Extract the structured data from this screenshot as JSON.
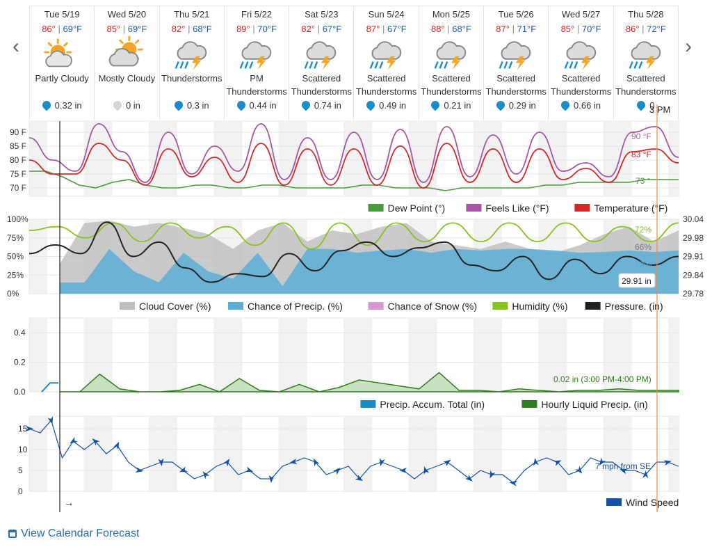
{
  "nav": {
    "prev_icon": "‹",
    "next_icon": "›"
  },
  "days": [
    {
      "name": "Tue 5/19",
      "hi": "86°",
      "lo": "69°F",
      "icon": "partly-cloudy",
      "cond": "Partly Cloudy",
      "precip": "0.32 in",
      "wet": true
    },
    {
      "name": "Wed 5/20",
      "hi": "85°",
      "lo": "69°F",
      "icon": "mostly-cloudy",
      "cond": "Mostly Cloudy",
      "precip": "0 in",
      "wet": false
    },
    {
      "name": "Thu 5/21",
      "hi": "82°",
      "lo": "68°F",
      "icon": "thunderstorm",
      "cond": "Thunderstorms",
      "precip": "0.3 in",
      "wet": true
    },
    {
      "name": "Fri 5/22",
      "hi": "89°",
      "lo": "70°F",
      "icon": "thunderstorm",
      "cond": "PM Thunderstorms",
      "precip": "0.44 in",
      "wet": true
    },
    {
      "name": "Sat 5/23",
      "hi": "82°",
      "lo": "67°F",
      "icon": "thunderstorm",
      "cond": "Scattered Thunderstorms",
      "precip": "0.74 in",
      "wet": true
    },
    {
      "name": "Sun 5/24",
      "hi": "87°",
      "lo": "67°F",
      "icon": "thunderstorm",
      "cond": "Scattered Thunderstorms",
      "precip": "0.49 in",
      "wet": true
    },
    {
      "name": "Mon 5/25",
      "hi": "88°",
      "lo": "68°F",
      "icon": "thunderstorm",
      "cond": "Scattered Thunderstorms",
      "precip": "0.21 in",
      "wet": true
    },
    {
      "name": "Tue 5/26",
      "hi": "87°",
      "lo": "71°F",
      "icon": "thunderstorm",
      "cond": "Scattered Thunderstorms",
      "precip": "0.29 in",
      "wet": true
    },
    {
      "name": "Wed 5/27",
      "hi": "85°",
      "lo": "70°F",
      "icon": "thunderstorm",
      "cond": "Scattered Thunderstorms",
      "precip": "0.66 in",
      "wet": true
    },
    {
      "name": "Thu 5/28",
      "hi": "86°",
      "lo": "72°F",
      "icon": "thunderstorm",
      "cond": "Scattered Thunderstorms",
      "precip": "0",
      "wet": true
    }
  ],
  "colors": {
    "temp": "#d62728",
    "feels": "#a855a8",
    "dew": "#4a9a3a",
    "cloud": "#bdbdbd",
    "precip_chance": "#5aaed6",
    "snow": "#d59ad0",
    "humidity": "#88c21e",
    "pressure": "#222222",
    "accum": "#1a8cc8",
    "liquid": "#2e7d1e",
    "wind": "#1052a8",
    "cursor": "#f08a3c"
  },
  "cursor_label": "3 PM",
  "chart_data": [
    {
      "type": "line",
      "yticks": [
        "90 F",
        "85 F",
        "80 F",
        "75 F",
        "70 F"
      ],
      "ylim": [
        67,
        94
      ],
      "series": [
        {
          "name": "Dew Point (°)",
          "key": "dew",
          "values": [
            76,
            76,
            74,
            71,
            70,
            72,
            73,
            71,
            70,
            70,
            71,
            71,
            70,
            70,
            71,
            71,
            70,
            70,
            70,
            70,
            71,
            71,
            70,
            70,
            70,
            69,
            70,
            70,
            70,
            70,
            70,
            71,
            71,
            72,
            72,
            72,
            72,
            73,
            73,
            73
          ]
        },
        {
          "name": "Feels Like (°F)",
          "key": "feels",
          "values": [
            88,
            80,
            76,
            93,
            83,
            72,
            90,
            75,
            85,
            76,
            93,
            73,
            88,
            73,
            90,
            73,
            91,
            72,
            92,
            74,
            89,
            75,
            90,
            76,
            79,
            74,
            90,
            92,
            81
          ]
        },
        {
          "name": "Temperature (°F)",
          "key": "temp",
          "values": [
            80,
            75,
            75,
            86,
            80,
            71,
            84,
            74,
            81,
            72,
            86,
            71,
            84,
            71,
            84,
            71,
            85,
            70,
            86,
            72,
            84,
            72,
            84,
            73,
            77,
            72,
            83,
            84,
            79
          ]
        }
      ],
      "callouts": [
        "90 °F",
        "83 °F",
        "73 °"
      ]
    },
    {
      "type": "area",
      "yticks_left": [
        "100%",
        "75%",
        "50%",
        "25%",
        "0%"
      ],
      "yticks_right": [
        "30.04",
        "29.98",
        "29.91",
        "29.84",
        "29.78"
      ],
      "series": [
        {
          "name": "Cloud Cover (%)",
          "key": "cloud",
          "values": [
            40,
            95,
            98,
            90,
            95,
            88,
            80,
            60,
            85,
            95,
            70,
            85,
            80,
            90,
            95,
            70,
            65,
            60,
            70,
            60,
            55,
            65,
            80,
            90,
            70,
            85
          ]
        },
        {
          "name": "Chance of Precip. (%)",
          "key": "precip_chance",
          "values": [
            15,
            15,
            60,
            30,
            15,
            55,
            30,
            20,
            55,
            10,
            60,
            60,
            55,
            58,
            60,
            55,
            60,
            58,
            60,
            60,
            58,
            55,
            56,
            58,
            56,
            58
          ]
        },
        {
          "name": "Chance of Snow (%)",
          "key": "snow",
          "values": []
        },
        {
          "name": "Humidity (%)",
          "key": "humidity",
          "values": [
            85,
            90,
            75,
            95,
            70,
            95,
            75,
            90,
            65,
            95,
            60,
            95,
            65,
            95,
            70,
            95,
            70,
            95,
            70,
            95,
            70,
            90,
            70,
            95
          ]
        },
        {
          "name": "Pressure. (in)",
          "key": "pressure",
          "values": [
            29.92,
            29.95,
            29.92,
            30.03,
            29.91,
            29.96,
            29.87,
            29.82,
            29.85,
            29.84,
            29.92,
            29.86,
            29.93,
            29.96,
            29.91,
            29.94,
            29.96,
            29.88,
            29.86,
            29.91,
            29.83,
            29.9,
            29.85,
            29.91,
            29.88,
            29.91
          ]
        }
      ],
      "callouts": [
        "72%",
        "66%",
        "59%",
        "29.91 in"
      ]
    },
    {
      "type": "area",
      "yticks": [
        "0.4",
        "0.2",
        "0.0"
      ],
      "ylim": [
        0,
        0.5
      ],
      "series": [
        {
          "name": "Precip. Accum. Total (in)",
          "key": "accum",
          "values": [
            0,
            0.06,
            0.06
          ]
        },
        {
          "name": "Hourly Liquid Precip. (in)",
          "key": "liquid",
          "values": [
            0,
            0,
            0.12,
            0.02,
            0,
            0,
            0.01,
            0.05,
            0,
            0.09,
            0.01,
            0,
            0.05,
            0,
            0.03,
            0.08,
            0.06,
            0.04,
            0.02,
            0.13,
            0.01,
            0.01,
            0,
            0.02,
            0.01,
            0,
            0.01,
            0.01,
            0.02,
            0.01,
            0.01,
            0.01
          ]
        }
      ],
      "callouts": [
        "0.02 in (3:00 PM-4:00 PM)"
      ]
    },
    {
      "type": "line",
      "yticks": [
        "15",
        "10",
        "5",
        "0"
      ],
      "ylim": [
        0,
        18
      ],
      "series": [
        {
          "name": "Wind Speed",
          "key": "wind",
          "values": [
            15,
            14,
            17,
            8,
            12,
            10,
            12,
            9,
            11,
            7,
            5,
            6,
            7,
            7,
            5,
            3,
            4,
            6,
            7,
            4,
            5,
            3,
            3,
            6,
            7,
            8,
            7,
            4,
            5,
            6,
            3,
            6,
            7,
            6,
            5,
            3,
            5,
            6,
            7,
            5,
            3,
            5,
            4,
            4,
            2,
            5,
            7,
            8,
            7,
            4,
            5,
            8,
            7,
            7,
            5,
            5,
            4,
            7,
            7,
            6
          ]
        }
      ],
      "callouts": [
        "7 mph from SE"
      ]
    }
  ],
  "arrow_label": "→",
  "footer": {
    "link": "View Calendar Forecast"
  }
}
